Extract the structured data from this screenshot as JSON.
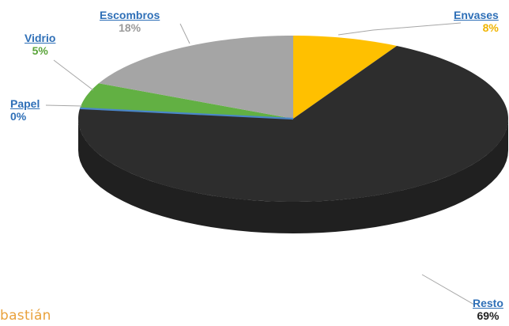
{
  "chart_data": {
    "type": "pie",
    "style": "3d",
    "slices": [
      {
        "label": "Envases",
        "pct_label": "8%",
        "value": 8,
        "color": "#ffc000"
      },
      {
        "label": "Resto",
        "pct_label": "69%",
        "value": 69,
        "color": "#2d2d2d"
      },
      {
        "label": "Papel",
        "pct_label": "0%",
        "value": 0,
        "color": "#4a86c8"
      },
      {
        "label": "Vidrio",
        "pct_label": "5%",
        "value": 5,
        "color": "#62b043"
      },
      {
        "label": "Escombros",
        "pct_label": "18%",
        "value": 18,
        "color": "#a5a5a5"
      }
    ],
    "label_colors": {
      "Envases": "#d99a00",
      "Resto": "#2e6fb7",
      "Papel": "#2e6fb7",
      "Vidrio": "#5aa43a",
      "Escombros": "#8c8c8c"
    }
  },
  "logo_text": "bastián"
}
